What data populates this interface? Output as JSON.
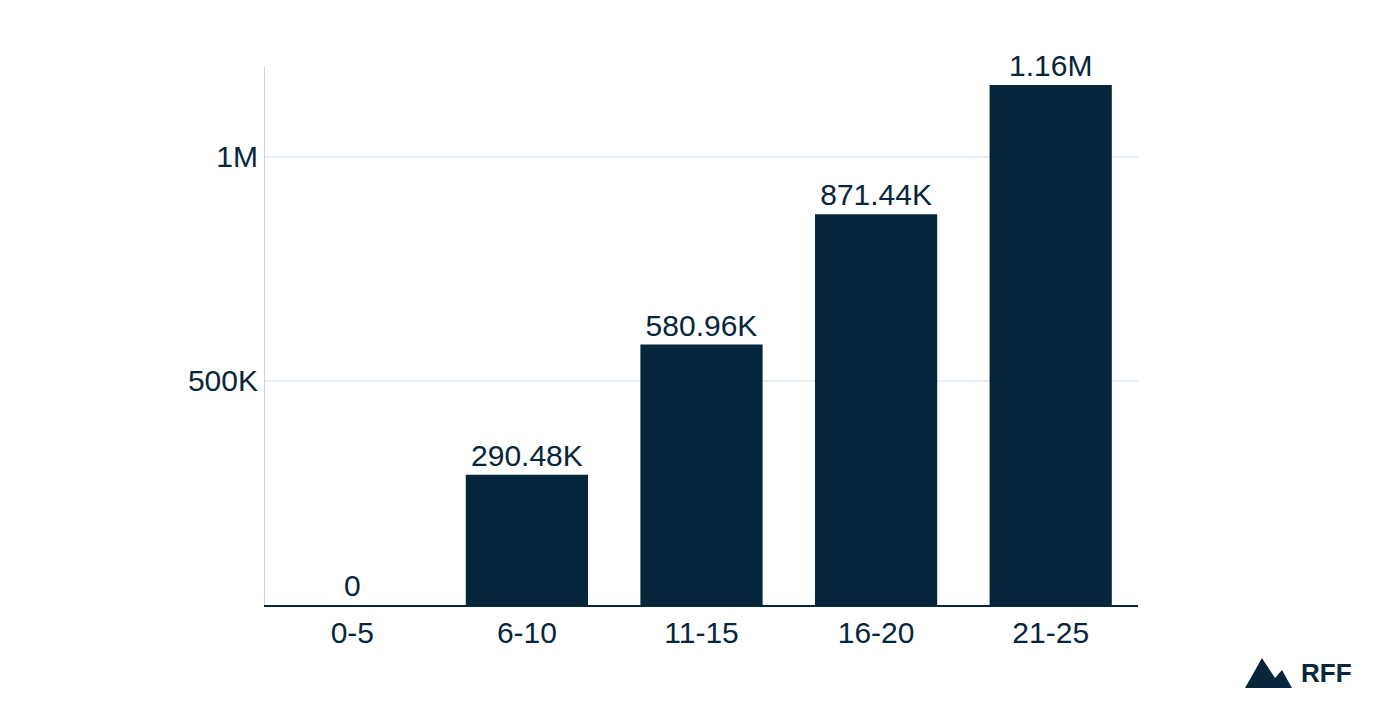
{
  "chart_data": {
    "type": "bar",
    "categories": [
      "0-5",
      "6-10",
      "11-15",
      "16-20",
      "21-25"
    ],
    "values": [
      0,
      290480,
      580960,
      871440,
      1160000
    ],
    "value_labels": [
      "0",
      "290.48K",
      "580.96K",
      "871.44K",
      "1.16M"
    ],
    "data_labels": true,
    "color": "#06263b",
    "ylim": [
      0,
      1200000
    ],
    "yticks": [
      {
        "value": 500000,
        "label": "500K"
      },
      {
        "value": 1000000,
        "label": "1M"
      }
    ],
    "grid": true,
    "annotations": [
      {
        "text": "RFF"
      }
    ]
  }
}
